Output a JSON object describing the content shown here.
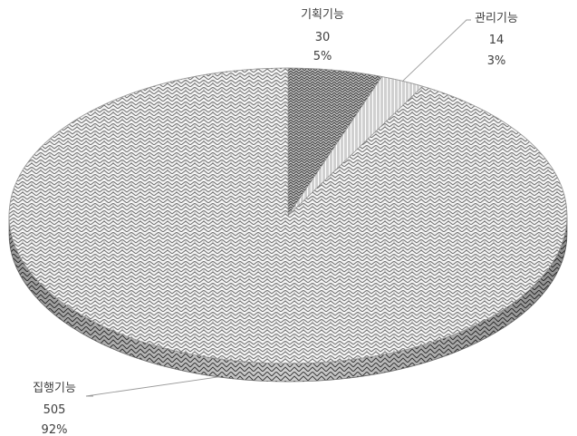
{
  "chart_data": {
    "type": "pie",
    "style": "3d",
    "fill_pattern": "woven",
    "slices": [
      {
        "label": "기획기능",
        "value": 30,
        "percent": "5%"
      },
      {
        "label": "관리기능",
        "value": 14,
        "percent": "3%"
      },
      {
        "label": "집행기능",
        "value": 505,
        "percent": "92%"
      }
    ],
    "colors": {
      "pattern_dark": "#4a4a4a",
      "pattern_light": "#ffffff",
      "edge": "#6b6b6b",
      "leader": "#9a9a9a",
      "text": "#404040"
    }
  }
}
